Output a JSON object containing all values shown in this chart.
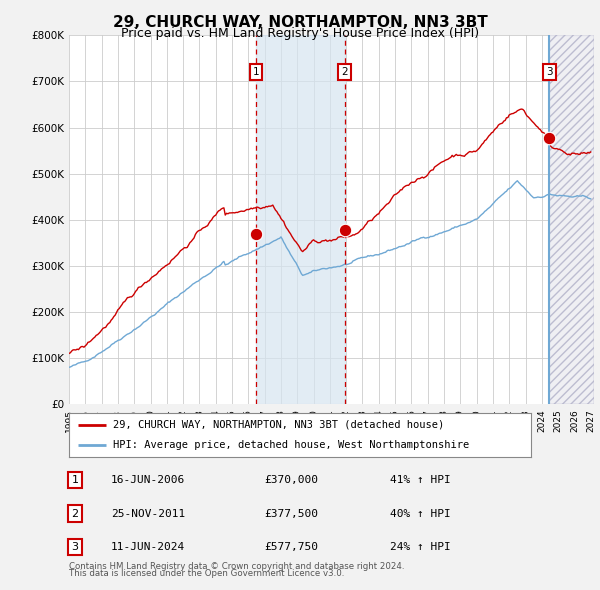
{
  "title": "29, CHURCH WAY, NORTHAMPTON, NN3 3BT",
  "subtitle": "Price paid vs. HM Land Registry's House Price Index (HPI)",
  "yticks": [
    0,
    100000,
    200000,
    300000,
    400000,
    500000,
    600000,
    700000,
    800000
  ],
  "ytick_labels": [
    "£0",
    "£100K",
    "£200K",
    "£300K",
    "£400K",
    "£500K",
    "£600K",
    "£700K",
    "£800K"
  ],
  "hpi_color": "#6fa8d4",
  "price_color": "#cc0000",
  "vline_color": "#cc0000",
  "vline3_color": "#6fa8d4",
  "transaction1": {
    "date_num": 2006.46,
    "price": 370000,
    "label": "1",
    "date_str": "16-JUN-2006",
    "hpi_pct": "41%"
  },
  "transaction2": {
    "date_num": 2011.9,
    "price": 377500,
    "label": "2",
    "date_str": "25-NOV-2011",
    "hpi_pct": "40%"
  },
  "transaction3": {
    "date_num": 2024.46,
    "price": 577750,
    "label": "3",
    "date_str": "11-JUN-2024",
    "hpi_pct": "24%"
  },
  "legend_price_label": "29, CHURCH WAY, NORTHAMPTON, NN3 3BT (detached house)",
  "legend_hpi_label": "HPI: Average price, detached house, West Northamptonshire",
  "footnote1": "Contains HM Land Registry data © Crown copyright and database right 2024.",
  "footnote2": "This data is licensed under the Open Government Licence v3.0.",
  "bg_color": "#f2f2f2",
  "plot_bg_color": "#ffffff",
  "grid_color": "#cccccc",
  "shade_between_color": "#d6e4f0",
  "hatch_color": "#c0c0d0",
  "xlabel_fontsize": 7,
  "title_fontsize": 11,
  "subtitle_fontsize": 9
}
